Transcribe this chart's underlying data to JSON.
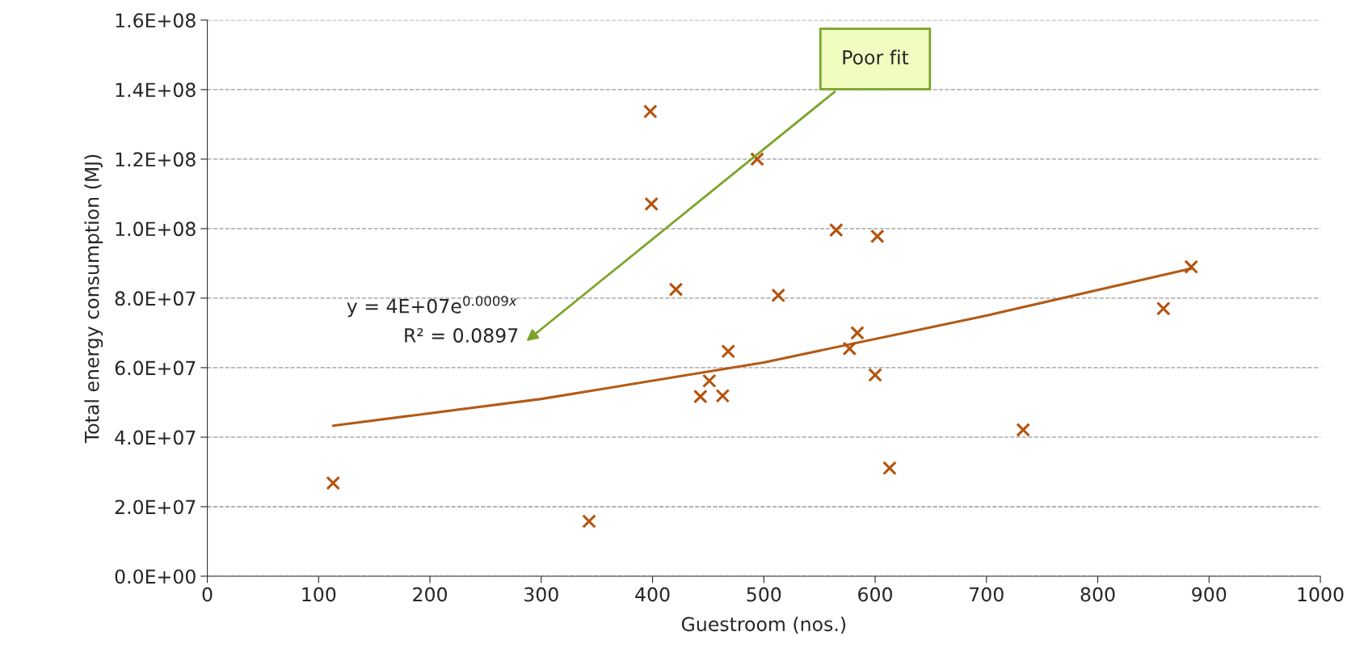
{
  "chart_data": {
    "type": "scatter",
    "xlabel": "Guestroom (nos.)",
    "ylabel": "Total energy consumption (MJ)",
    "xlim": [
      0,
      1000
    ],
    "xticks": [
      0,
      100,
      200,
      300,
      400,
      500,
      600,
      700,
      800,
      900,
      1000
    ],
    "ylim": [
      0,
      160000000
    ],
    "yticks": [
      {
        "value": 0,
        "label": "0.0E+00"
      },
      {
        "value": 20000000,
        "label": "2.0E+07"
      },
      {
        "value": 40000000,
        "label": "4.0E+07"
      },
      {
        "value": 60000000,
        "label": "6.0E+07"
      },
      {
        "value": 80000000,
        "label": "8.0E+07"
      },
      {
        "value": 100000000,
        "label": "1.0E+08"
      },
      {
        "value": 120000000,
        "label": "1.2E+08"
      },
      {
        "value": 140000000,
        "label": "1.4E+08"
      },
      {
        "value": 160000000,
        "label": "1.6E+08"
      }
    ],
    "grid": "y",
    "legend": false,
    "series": [
      {
        "color": "#b5520b",
        "marker": "cross",
        "x": [
          113,
          343,
          398,
          399,
          421,
          494,
          513,
          443,
          451,
          463,
          468,
          565,
          602,
          584,
          577,
          600,
          613,
          733,
          859,
          884
        ],
        "values": [
          26800000,
          15800000,
          133700000,
          107100000,
          82500000,
          120000000,
          80800000,
          51700000,
          56200000,
          51900000,
          64700000,
          99600000,
          97800000,
          70000000,
          65500000,
          57900000,
          31100000,
          42100000,
          77000000,
          89000000
        ]
      },
      {
        "type": "line",
        "color": "#b35a16",
        "marker": "none",
        "line_style": "solid",
        "x": [
          113,
          300,
          500,
          700,
          884
        ],
        "values": [
          43300000,
          51000000,
          61500000,
          75000000,
          88500000
        ]
      }
    ],
    "annotations": [
      "y = 4E+07e$^{0.0009x}$",
      "R² = 0.0897",
      "Poor fit"
    ]
  }
}
